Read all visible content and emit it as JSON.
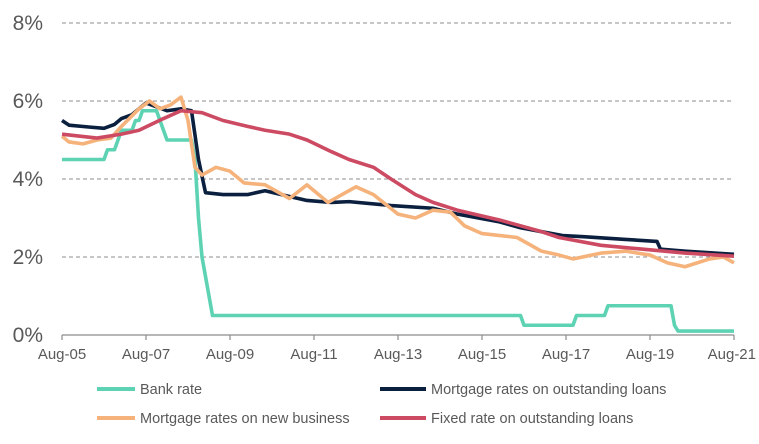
{
  "chart_data": {
    "type": "line",
    "title": "",
    "xlabel": "",
    "ylabel": "",
    "x_range": [
      "2005-08",
      "2021-08"
    ],
    "ylim": [
      0,
      8
    ],
    "y_ticks": [
      0,
      2,
      4,
      6,
      8
    ],
    "y_tick_labels": [
      "0%",
      "2%",
      "4%",
      "6%",
      "8%"
    ],
    "y_grid": "dashed",
    "x_ticks": [
      "2005-08",
      "2007-08",
      "2009-08",
      "2011-08",
      "2013-08",
      "2015-08",
      "2017-08",
      "2019-08",
      "2021-08"
    ],
    "x_tick_labels": [
      "Aug-05",
      "Aug-07",
      "Aug-09",
      "Aug-11",
      "Aug-13",
      "Aug-15",
      "Aug-17",
      "Aug-19",
      "Aug-21"
    ],
    "legend_position": "bottom",
    "series": [
      {
        "name": "Bank rate",
        "color": "#5ED3B4",
        "points": [
          [
            "2005-08",
            4.5
          ],
          [
            "2006-08",
            4.5
          ],
          [
            "2006-09",
            4.75
          ],
          [
            "2006-11",
            4.75
          ],
          [
            "2006-12",
            5.0
          ],
          [
            "2007-01",
            5.25
          ],
          [
            "2007-04",
            5.25
          ],
          [
            "2007-05",
            5.5
          ],
          [
            "2007-06",
            5.5
          ],
          [
            "2007-07",
            5.75
          ],
          [
            "2007-11",
            5.75
          ],
          [
            "2007-12",
            5.5
          ],
          [
            "2008-01",
            5.25
          ],
          [
            "2008-02",
            5.0
          ],
          [
            "2008-09",
            5.0
          ],
          [
            "2008-10",
            4.5
          ],
          [
            "2008-11",
            3.0
          ],
          [
            "2008-12",
            2.0
          ],
          [
            "2009-01",
            1.5
          ],
          [
            "2009-02",
            1.0
          ],
          [
            "2009-03",
            0.5
          ],
          [
            "2016-07",
            0.5
          ],
          [
            "2016-08",
            0.25
          ],
          [
            "2017-10",
            0.25
          ],
          [
            "2017-11",
            0.5
          ],
          [
            "2018-07",
            0.5
          ],
          [
            "2018-08",
            0.75
          ],
          [
            "2020-02",
            0.75
          ],
          [
            "2020-03",
            0.25
          ],
          [
            "2020-04",
            0.1
          ],
          [
            "2021-08",
            0.1
          ]
        ]
      },
      {
        "name": "Mortgage rates on outstanding loans",
        "color": "#0B1F3F",
        "points": [
          [
            "2005-08",
            5.5
          ],
          [
            "2005-10",
            5.38
          ],
          [
            "2006-04",
            5.33
          ],
          [
            "2006-08",
            5.3
          ],
          [
            "2006-11",
            5.4
          ],
          [
            "2007-01",
            5.55
          ],
          [
            "2007-04",
            5.65
          ],
          [
            "2007-06",
            5.8
          ],
          [
            "2007-08",
            5.95
          ],
          [
            "2007-11",
            5.85
          ],
          [
            "2008-02",
            5.75
          ],
          [
            "2008-06",
            5.8
          ],
          [
            "2008-09",
            5.75
          ],
          [
            "2008-11",
            4.5
          ],
          [
            "2009-01",
            3.65
          ],
          [
            "2009-06",
            3.6
          ],
          [
            "2010-01",
            3.6
          ],
          [
            "2010-06",
            3.7
          ],
          [
            "2011-01",
            3.55
          ],
          [
            "2011-06",
            3.45
          ],
          [
            "2012-01",
            3.4
          ],
          [
            "2012-06",
            3.42
          ],
          [
            "2013-06",
            3.32
          ],
          [
            "2014-06",
            3.25
          ],
          [
            "2015-01",
            3.1
          ],
          [
            "2016-01",
            2.9
          ],
          [
            "2016-07",
            2.75
          ],
          [
            "2017-07",
            2.55
          ],
          [
            "2018-01",
            2.52
          ],
          [
            "2019-01",
            2.45
          ],
          [
            "2019-10",
            2.4
          ],
          [
            "2019-11",
            2.2
          ],
          [
            "2020-06",
            2.15
          ],
          [
            "2021-08",
            2.07
          ]
        ]
      },
      {
        "name": "Mortgage rates on new business",
        "color": "#F5B27A",
        "points": [
          [
            "2005-08",
            5.1
          ],
          [
            "2005-10",
            4.95
          ],
          [
            "2006-02",
            4.9
          ],
          [
            "2006-06",
            5.0
          ],
          [
            "2006-10",
            5.05
          ],
          [
            "2007-01",
            5.35
          ],
          [
            "2007-06",
            5.8
          ],
          [
            "2007-09",
            6.0
          ],
          [
            "2007-12",
            5.8
          ],
          [
            "2008-03",
            5.9
          ],
          [
            "2008-06",
            6.1
          ],
          [
            "2008-08",
            5.5
          ],
          [
            "2008-10",
            4.3
          ],
          [
            "2008-12",
            4.1
          ],
          [
            "2009-04",
            4.3
          ],
          [
            "2009-08",
            4.2
          ],
          [
            "2009-12",
            3.9
          ],
          [
            "2010-06",
            3.85
          ],
          [
            "2011-01",
            3.5
          ],
          [
            "2011-06",
            3.85
          ],
          [
            "2011-12",
            3.4
          ],
          [
            "2012-04",
            3.6
          ],
          [
            "2012-08",
            3.8
          ],
          [
            "2013-01",
            3.6
          ],
          [
            "2013-08",
            3.1
          ],
          [
            "2014-01",
            3.0
          ],
          [
            "2014-06",
            3.2
          ],
          [
            "2014-11",
            3.15
          ],
          [
            "2015-03",
            2.8
          ],
          [
            "2015-08",
            2.6
          ],
          [
            "2016-06",
            2.5
          ],
          [
            "2017-01",
            2.15
          ],
          [
            "2017-06",
            2.05
          ],
          [
            "2017-10",
            1.95
          ],
          [
            "2018-06",
            2.1
          ],
          [
            "2019-01",
            2.15
          ],
          [
            "2019-08",
            2.05
          ],
          [
            "2020-01",
            1.85
          ],
          [
            "2020-06",
            1.75
          ],
          [
            "2021-01",
            1.95
          ],
          [
            "2021-05",
            2.0
          ],
          [
            "2021-08",
            1.85
          ]
        ]
      },
      {
        "name": "Fixed rate on outstanding loans",
        "color": "#CD4A63",
        "points": [
          [
            "2005-08",
            5.15
          ],
          [
            "2006-06",
            5.05
          ],
          [
            "2007-01",
            5.15
          ],
          [
            "2007-06",
            5.25
          ],
          [
            "2008-01",
            5.55
          ],
          [
            "2008-06",
            5.75
          ],
          [
            "2008-12",
            5.7
          ],
          [
            "2009-06",
            5.5
          ],
          [
            "2010-01",
            5.35
          ],
          [
            "2010-06",
            5.25
          ],
          [
            "2011-01",
            5.15
          ],
          [
            "2011-06",
            5.0
          ],
          [
            "2012-01",
            4.7
          ],
          [
            "2012-06",
            4.5
          ],
          [
            "2013-01",
            4.3
          ],
          [
            "2013-06",
            4.0
          ],
          [
            "2014-01",
            3.6
          ],
          [
            "2014-06",
            3.4
          ],
          [
            "2015-01",
            3.2
          ],
          [
            "2016-01",
            2.95
          ],
          [
            "2017-01",
            2.65
          ],
          [
            "2017-06",
            2.5
          ],
          [
            "2018-06",
            2.3
          ],
          [
            "2019-06",
            2.2
          ],
          [
            "2020-06",
            2.1
          ],
          [
            "2021-08",
            2.02
          ]
        ]
      }
    ]
  }
}
